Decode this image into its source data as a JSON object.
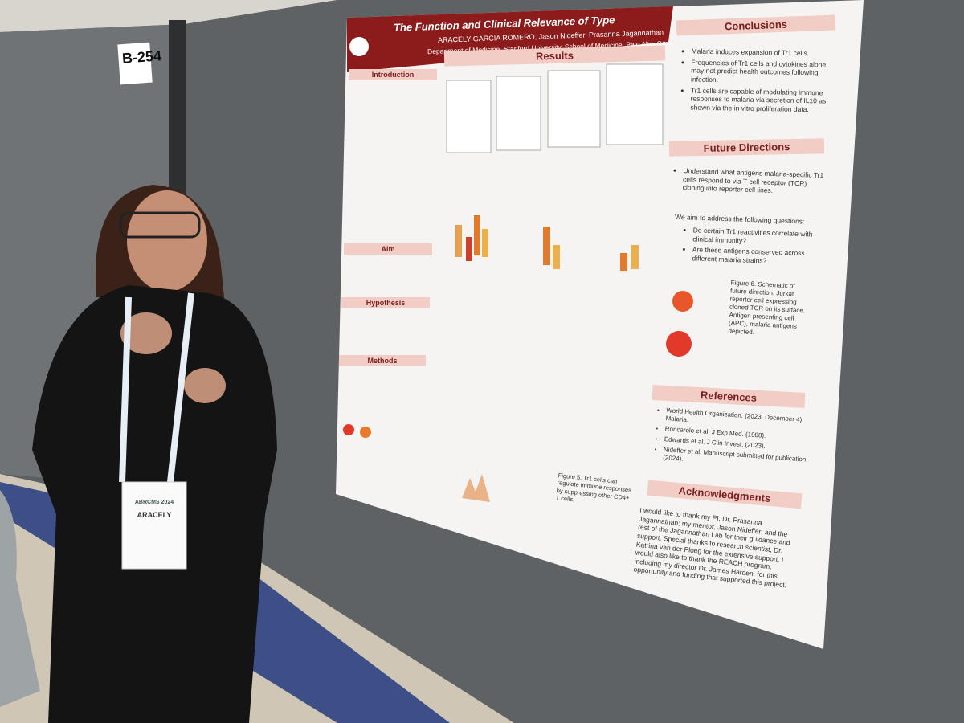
{
  "booth_sign": "B-254",
  "poster": {
    "title": "The Function and Clinical Relevance of Type",
    "authors": "ARACELY GARCIA ROMERO, Jason Nideffer, Prasanna Jagannathan",
    "affiliation": "Department of Medicine, Stanford University, School of Medicine, Palo Alto, CA",
    "left_sections": [
      "Introduction",
      "Aim",
      "Hypothesis",
      "Methods"
    ],
    "results": {
      "heading": "Results",
      "figure5_caption": "Figure 5. Tr1 cells can regulate immune responses by suppressing other CD4+ T cells."
    },
    "conclusions": {
      "heading": "Conclusions",
      "items": [
        "Malaria induces expansion of Tr1 cells.",
        "Frequencies of Tr1 cells and cytokines alone may not predict health outcomes following infection.",
        "Tr1 cells are capable of modulating immune responses to malaria via secretion of IL10 as shown via the in vitro proliferation data."
      ]
    },
    "future_directions": {
      "heading": "Future Directions",
      "items": [
        "Understand what antigens malaria-specific Tr1 cells respond to via T cell receptor (TCR) cloning into reporter cell lines."
      ],
      "intro": "We aim to address the following questions:",
      "questions": [
        "Do certain Tr1 reactivities correlate with clinical immunity?",
        "Are these antigens conserved across different malaria strains?"
      ],
      "figure6_caption": "Figure 6. Schematic of future direction. Jurkat reporter cell expressing cloned TCR on its surface. Antigen presenting cell (APC), malaria antigens depicted."
    },
    "references": {
      "heading": "References",
      "items": [
        "World Health Organization. (2023, December 4). Malaria.",
        "Roncarolo et al. J Exp Med. (1988).",
        "Edwards et al. J Clin Invest. (2023).",
        "Nideffer et al. Manuscript submitted for publication. (2024)."
      ]
    },
    "acknowledgments": {
      "heading": "Acknowledgments",
      "text": "I would like to thank my PI, Dr. Prasanna Jagannathan; my mentor, Jason Nideffer; and the rest of the Jagannathan Lab for their guidance and support. Special thanks to research scientist, Dr. Katrina van der Ploeg for the extensive support. I would also like to thank the REACH program, including my director Dr. James Harden, for this opportunity and funding that supported this project."
    }
  },
  "badge": {
    "event": "ABRCMS 2024",
    "name": "ARACELY"
  }
}
